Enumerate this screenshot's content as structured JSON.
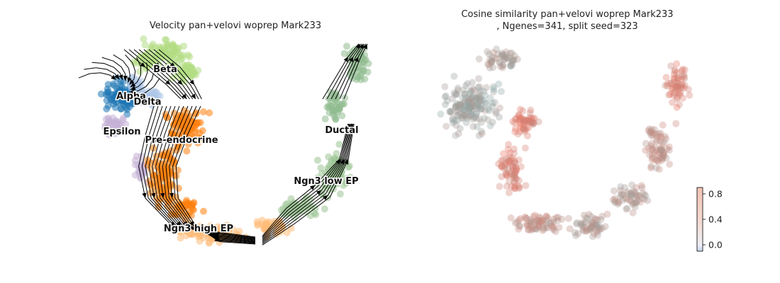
{
  "chart_data": [
    {
      "type": "scatter",
      "title": "Velocity pan+velovi woprep Mark233",
      "clusters": [
        {
          "name": "Beta",
          "color": "#b2dc83"
        },
        {
          "name": "Alpha",
          "color": "#1f77b4"
        },
        {
          "name": "Delta",
          "color": "#aec7e8"
        },
        {
          "name": "Epsilon",
          "color": "#c5b0d5"
        },
        {
          "name": "Pre-endocrine",
          "color": "#ff7f0e"
        },
        {
          "name": "Ngn3 high EP",
          "color": "#ffbb78"
        },
        {
          "name": "Ngn3 low EP",
          "color": "#9cc495"
        },
        {
          "name": "Ductal",
          "color": "#8fbc8f"
        }
      ],
      "grid": false,
      "axes": false
    },
    {
      "type": "scatter",
      "title": "Cosine similarity pan+velovi woprep Mark233\n, Ngenes=341, split seed=323",
      "colorbar": {
        "ticks": [
          "0.0",
          "0.4",
          "0.8"
        ],
        "range": [
          -0.1,
          0.9
        ],
        "cmap": "coolwarm"
      },
      "grid": false,
      "axes": false
    }
  ]
}
